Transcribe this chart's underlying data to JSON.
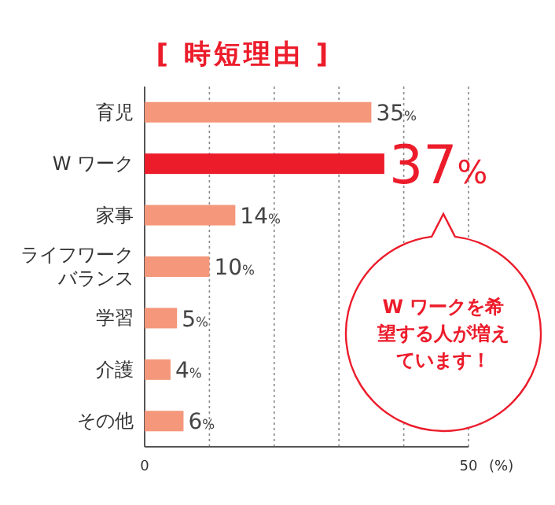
{
  "chart_data": {
    "type": "bar",
    "orientation": "horizontal",
    "title": "[ 時短理由 ]",
    "xlabel": "(%)",
    "categories": [
      "育児",
      "W ワーク",
      "家事",
      "ライフワークバランス",
      "学習",
      "介護",
      "その他"
    ],
    "values": [
      35,
      37,
      14,
      10,
      5,
      4,
      6
    ],
    "colors": [
      "#f4977a",
      "#ec1c2b",
      "#f4977a",
      "#f4977a",
      "#f4977a",
      "#f4977a",
      "#f4977a"
    ],
    "value_labels": [
      "35%",
      "37%",
      "14%",
      "10%",
      "5%",
      "4%",
      "6%"
    ],
    "xlim": [
      0,
      50
    ],
    "xticks": [
      0,
      {
        "value": 10,
        "label": null
      },
      {
        "value": 20,
        "label": null
      },
      {
        "value": 30,
        "label": null
      },
      {
        "value": 40,
        "label": null
      },
      50
    ],
    "grid": "x",
    "annotations": [
      "W ワークを希望する人が増えています！"
    ]
  }
}
